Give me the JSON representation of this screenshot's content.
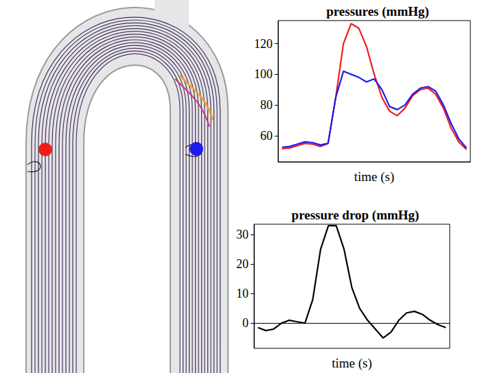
{
  "chart_data": [
    {
      "type": "line",
      "title": "pressures (mmHg)",
      "x_label": "time (s)",
      "x": [
        0.02,
        0.06,
        0.1,
        0.14,
        0.18,
        0.22,
        0.26,
        0.3,
        0.34,
        0.38,
        0.42,
        0.46,
        0.5,
        0.54,
        0.58,
        0.62,
        0.66,
        0.7,
        0.74,
        0.78,
        0.82,
        0.86,
        0.9,
        0.94,
        0.98
      ],
      "series": [
        {
          "color": "#ee1c1c",
          "values": [
            51.5,
            52,
            53.5,
            55,
            54.5,
            53,
            55,
            85,
            120,
            133,
            130,
            118,
            100,
            85,
            76,
            73,
            78,
            86,
            90,
            91,
            87,
            78,
            65,
            56,
            51
          ]
        },
        {
          "color": "#1c1cee",
          "values": [
            52.5,
            53,
            54.5,
            56,
            55.5,
            54,
            55,
            85,
            102,
            100,
            98,
            95,
            97,
            90,
            79,
            77,
            80,
            87,
            91,
            92,
            89,
            80,
            68,
            58,
            52
          ]
        }
      ],
      "xlim": [
        0,
        1
      ],
      "xticks": [],
      "ylim": [
        43,
        135
      ],
      "yticks": [
        60,
        80,
        100,
        120
      ],
      "grid": false,
      "tick_labels": "y"
    },
    {
      "type": "line",
      "title": "pressure drop (mmHg)",
      "x_label": "time (s)",
      "x": [
        0.02,
        0.06,
        0.1,
        0.14,
        0.18,
        0.22,
        0.26,
        0.3,
        0.34,
        0.38,
        0.42,
        0.46,
        0.5,
        0.54,
        0.58,
        0.62,
        0.66,
        0.7,
        0.74,
        0.78,
        0.82,
        0.86,
        0.9,
        0.94,
        0.98
      ],
      "series": [
        {
          "color": "#000000",
          "values": [
            -1.5,
            -2.5,
            -2,
            0,
            1,
            0.5,
            0,
            8,
            25,
            33,
            33,
            25,
            12,
            5,
            1,
            -2,
            -5,
            -3,
            1,
            3.5,
            4,
            3,
            1,
            -0.5,
            -1.5
          ]
        }
      ],
      "xlim": [
        0,
        1
      ],
      "xticks": [],
      "ylim": [
        -8.5,
        33.5
      ],
      "yticks": [
        0,
        10,
        20,
        30
      ],
      "grid": false,
      "tick_labels": "y"
    }
  ]
}
